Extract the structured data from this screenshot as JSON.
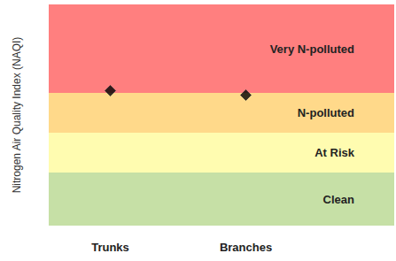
{
  "chart_data": {
    "type": "scatter",
    "y_label": "Nitrogen Air Quality Index (NAQI)",
    "categories": [
      "Trunks",
      "Branches"
    ],
    "values": [
      3.05,
      2.95
    ],
    "color": "#000000",
    "marker": "diamond",
    "ylim": [
      0,
      5
    ],
    "tick_labels": "x",
    "grid": false,
    "bands": [
      {
        "label": "Clean",
        "from": 0,
        "to": 1.2,
        "color": "#c6e0a6"
      },
      {
        "label": "At Risk",
        "from": 1.2,
        "to": 2.1,
        "color": "#fffcb0"
      },
      {
        "label": "N-polluted",
        "from": 2.1,
        "to": 3.0,
        "color": "#ffd98a"
      },
      {
        "label": "Very N-polluted",
        "from": 3.0,
        "to": 5,
        "color": "#ff7f7f"
      }
    ]
  }
}
